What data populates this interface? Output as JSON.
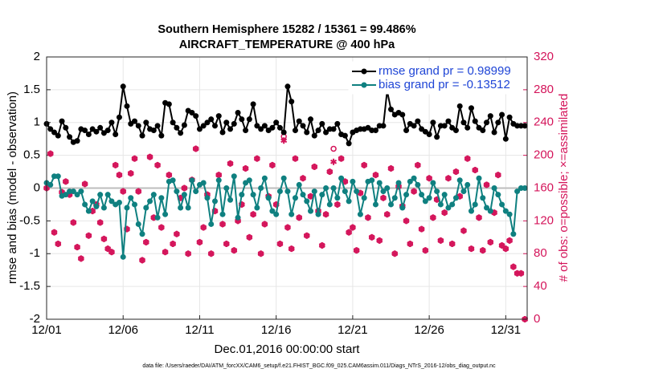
{
  "chart_data": {
    "type": "line",
    "title": "Southern Hemisphere 15282 / 15361 = 99.486%",
    "subtitle": "AIRCRAFT_TEMPERATURE @ 400 hPa",
    "xlabel": "Dec.01,2016 00:00:00 start",
    "ylabel": "rmse and bias (model - observation)",
    "y2label": "# of obs: o=possible; ×=assimilated",
    "footnote": "data file: /Users/raeder/DAI/ATM_forcXX/CAM6_setup/f.e21.FHIST_BGC.f09_025.CAM6assim.011/Diags_NTrS_2016-12/obs_diag_output.nc",
    "grid": true,
    "xlim": [
      0,
      31.4
    ],
    "xticks": [
      {
        "value": 0,
        "label": "12/01"
      },
      {
        "value": 5,
        "label": "12/06"
      },
      {
        "value": 10,
        "label": "12/11"
      },
      {
        "value": 15,
        "label": "12/16"
      },
      {
        "value": 20,
        "label": "12/21"
      },
      {
        "value": 25,
        "label": "12/26"
      },
      {
        "value": 30,
        "label": "12/31"
      }
    ],
    "ylim": [
      -2,
      2
    ],
    "yticks": [
      -2,
      -1.5,
      -1,
      -0.5,
      0,
      0.5,
      1,
      1.5,
      2
    ],
    "y2lim": [
      0,
      320
    ],
    "y2ticks": [
      0,
      40,
      80,
      120,
      160,
      200,
      240,
      280,
      320
    ],
    "legend": "upper right",
    "x": [
      0,
      0.25,
      0.5,
      0.75,
      1,
      1.25,
      1.5,
      1.75,
      2,
      2.25,
      2.5,
      2.75,
      3,
      3.25,
      3.5,
      3.75,
      4,
      4.25,
      4.5,
      4.75,
      5,
      5.25,
      5.5,
      5.75,
      6,
      6.25,
      6.5,
      6.75,
      7,
      7.25,
      7.5,
      7.75,
      8,
      8.25,
      8.5,
      8.75,
      9,
      9.25,
      9.5,
      9.75,
      10,
      10.25,
      10.5,
      10.75,
      11,
      11.25,
      11.5,
      11.75,
      12,
      12.25,
      12.5,
      12.75,
      13,
      13.25,
      13.5,
      13.75,
      14,
      14.25,
      14.5,
      14.75,
      15,
      15.25,
      15.5,
      15.75,
      16,
      16.25,
      16.5,
      16.75,
      17,
      17.25,
      17.5,
      17.75,
      18,
      18.25,
      18.5,
      18.75,
      19,
      19.25,
      19.5,
      19.75,
      20,
      20.25,
      20.5,
      20.75,
      21,
      21.25,
      21.5,
      21.75,
      22,
      22.25,
      22.5,
      22.75,
      23,
      23.25,
      23.5,
      23.75,
      24,
      24.25,
      24.5,
      24.75,
      25,
      25.25,
      25.5,
      25.75,
      26,
      26.25,
      26.5,
      26.75,
      27,
      27.25,
      27.5,
      27.75,
      28,
      28.25,
      28.5,
      28.75,
      29,
      29.25,
      29.5,
      29.75,
      30,
      30.25,
      30.5,
      30.75,
      31,
      31.25
    ],
    "series": [
      {
        "name": "rmse grand pr = 0.98999",
        "color": "#000000",
        "marker": "dot",
        "values": [
          0.98,
          0.9,
          0.85,
          0.8,
          1.02,
          0.92,
          0.78,
          0.7,
          0.72,
          0.9,
          0.88,
          0.82,
          0.9,
          0.86,
          0.92,
          0.84,
          0.88,
          1.0,
          0.82,
          1.08,
          1.55,
          1.25,
          0.98,
          1.02,
          0.95,
          0.8,
          1.0,
          0.9,
          0.88,
          0.95,
          0.8,
          1.3,
          1.28,
          1.0,
          0.92,
          0.84,
          0.96,
          1.18,
          1.15,
          1.1,
          0.9,
          0.95,
          1.0,
          1.05,
          0.95,
          1.1,
          0.85,
          1.0,
          0.9,
          0.98,
          1.15,
          1.05,
          0.88,
          1.05,
          1.28,
          0.95,
          0.9,
          0.95,
          0.88,
          0.92,
          1.0,
          0.92,
          0.85,
          1.55,
          1.32,
          0.88,
          1.02,
          0.95,
          0.85,
          1.05,
          0.8,
          0.88,
          0.98,
          0.85,
          0.9,
          0.9,
          0.98,
          0.82,
          0.8,
          0.68,
          0.85,
          0.88,
          0.9,
          0.9,
          0.92,
          0.88,
          0.88,
          0.95,
          0.95,
          1.48,
          1.2,
          1.12,
          1.15,
          1.12,
          0.88,
          0.98,
          0.95,
          1.02,
          0.9,
          0.86,
          0.82,
          1.0,
          0.78,
          0.95,
          0.95,
          1.02,
          0.92,
          0.88,
          1.25,
          1.0,
          0.92,
          1.22,
          1.02,
          0.92,
          0.88,
          1.0,
          1.1,
          0.85,
          1.0,
          1.12,
          0.75,
          1.08,
          0.98,
          0.95,
          0.95,
          0.95
        ]
      },
      {
        "name": "bias grand pr = -0.13512",
        "color": "#0f8080",
        "marker": "dot",
        "values": [
          0.08,
          0.05,
          0.18,
          0.18,
          -0.12,
          -0.1,
          -0.05,
          -0.05,
          -0.1,
          -0.05,
          -0.25,
          -0.35,
          -0.2,
          -0.28,
          -0.1,
          -0.3,
          -0.1,
          -0.2,
          -0.25,
          -0.22,
          -1.05,
          -0.3,
          -0.15,
          -0.25,
          -0.55,
          -0.7,
          -0.3,
          -0.2,
          -0.1,
          -0.45,
          -0.15,
          -0.4,
          0.1,
          0.12,
          -0.05,
          -0.3,
          -0.1,
          -0.3,
          0.12,
          -0.05,
          0.05,
          0.08,
          -0.15,
          -0.55,
          -0.2,
          0.12,
          -0.4,
          0.0,
          -0.18,
          0.18,
          -0.45,
          -0.1,
          0.08,
          0.12,
          -0.1,
          -0.3,
          0.0,
          0.15,
          -0.15,
          -0.35,
          -0.4,
          -0.05,
          0.15,
          -0.05,
          -0.4,
          -0.15,
          0.05,
          -0.1,
          -0.2,
          -0.35,
          -0.05,
          -0.4,
          -0.1,
          0.0,
          -0.25,
          0.0,
          -0.15,
          0.15,
          -0.05,
          -0.2,
          0.1,
          -0.05,
          -0.4,
          -0.15,
          0.1,
          0.12,
          -0.25,
          0.08,
          -0.05,
          0.0,
          -0.25,
          -0.15,
          0.08,
          -0.3,
          -0.1,
          0.1,
          0.15,
          0.05,
          -0.1,
          -0.2,
          -0.15,
          0.08,
          -0.05,
          -0.25,
          -0.1,
          -0.3,
          -0.25,
          -0.15,
          0.12,
          -0.05,
          0.05,
          -0.35,
          -0.25,
          0.15,
          -0.15,
          -0.3,
          -0.35,
          0.0,
          -0.1,
          -0.25,
          -0.35,
          -0.4,
          -0.7,
          -0.05,
          0.0,
          0.0
        ]
      },
      {
        "axis": "y2",
        "color": "#d4145a",
        "marker": "circle",
        "values": [
          160,
          202,
          106,
          92,
          155,
          168,
          152,
          118,
          88,
          74,
          165,
          102,
          132,
          140,
          118,
          98,
          86,
          82,
          188,
          176,
          156,
          110,
          178,
          196,
          156,
          72,
          94,
          198,
          124,
          188,
          112,
          82,
          176,
          92,
          104,
          148,
          160,
          80,
          170,
          208,
          94,
          112,
          152,
          80,
          132,
          176,
          116,
          92,
          190,
          84,
          120,
          140,
          184,
          100,
          128,
          196,
          80,
          116,
          150,
          188,
          140,
          92,
          223,
          112,
          86,
          196,
          124,
          172,
          102,
          150,
          186,
          132,
          90,
          128,
          180,
          208,
          140,
          196,
          168,
          106,
          112,
          84,
          154,
          188,
          124,
          100,
          176,
          96,
          148,
          128,
          184,
          80,
          162,
          138,
          120,
          92,
          156,
          188,
          110,
          84,
          172,
          124,
          146,
          96,
          130,
          172,
          92,
          180,
          150,
          108,
          196,
          86,
          182,
          124,
          84,
          164,
          94,
          130,
          176,
          90,
          86,
          96,
          64,
          56,
          56,
          0
        ]
      },
      {
        "axis": "y2",
        "color": "#d4145a",
        "marker": "asterisk",
        "values": [
          160,
          202,
          106,
          92,
          155,
          168,
          152,
          118,
          88,
          74,
          165,
          102,
          132,
          140,
          118,
          98,
          86,
          82,
          188,
          176,
          156,
          110,
          178,
          196,
          156,
          72,
          94,
          198,
          124,
          188,
          112,
          82,
          176,
          92,
          104,
          148,
          160,
          80,
          170,
          208,
          94,
          112,
          152,
          80,
          132,
          176,
          116,
          92,
          190,
          84,
          120,
          140,
          184,
          100,
          128,
          196,
          80,
          116,
          150,
          188,
          140,
          92,
          218,
          112,
          86,
          196,
          124,
          172,
          102,
          150,
          186,
          132,
          90,
          128,
          180,
          192,
          140,
          196,
          168,
          106,
          112,
          84,
          154,
          188,
          124,
          100,
          176,
          96,
          148,
          128,
          184,
          80,
          162,
          138,
          120,
          92,
          156,
          188,
          110,
          84,
          172,
          124,
          146,
          96,
          130,
          172,
          92,
          180,
          150,
          108,
          196,
          86,
          182,
          124,
          84,
          164,
          94,
          130,
          176,
          90,
          86,
          96,
          64,
          56,
          56,
          0
        ]
      }
    ]
  }
}
